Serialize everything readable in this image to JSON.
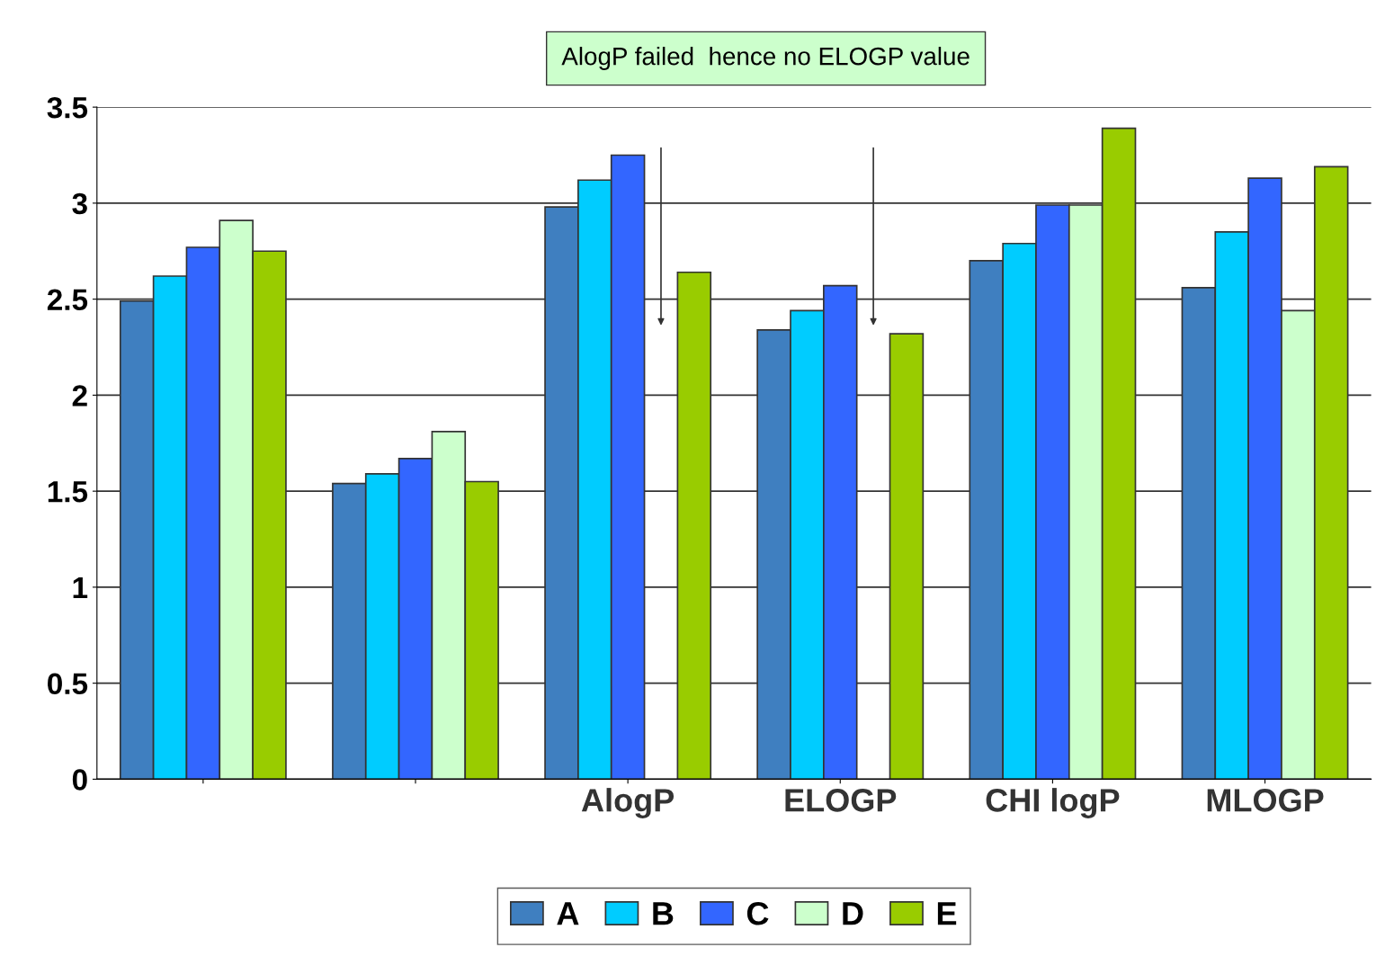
{
  "chart_data": {
    "type": "bar",
    "categories": [
      null,
      null,
      "AlogP",
      "ELOGP",
      "CHI logP",
      "MLOGP"
    ],
    "series": [
      {
        "name": "A",
        "color": "#3f7fc0",
        "values": [
          2.49,
          1.54,
          2.98,
          2.34,
          2.7,
          2.56
        ]
      },
      {
        "name": "B",
        "color": "#00ccff",
        "values": [
          2.62,
          1.59,
          3.12,
          2.44,
          2.79,
          2.85
        ]
      },
      {
        "name": "C",
        "color": "#3366ff",
        "values": [
          2.77,
          1.67,
          3.25,
          2.57,
          2.99,
          3.13
        ]
      },
      {
        "name": "D",
        "color": "#ccffcc",
        "values": [
          2.91,
          1.81,
          null,
          null,
          2.99,
          2.44
        ]
      },
      {
        "name": "E",
        "color": "#99cc00",
        "values": [
          2.75,
          1.55,
          2.64,
          2.32,
          3.39,
          3.19
        ]
      }
    ],
    "ylim": [
      0,
      3.5
    ],
    "yticks": [
      0,
      0.5,
      1,
      1.5,
      2,
      2.5,
      3,
      3.5
    ],
    "grid": "y",
    "legend": "bottom",
    "annotations": [
      "AlogP failed  hence no ELOGP value"
    ]
  }
}
